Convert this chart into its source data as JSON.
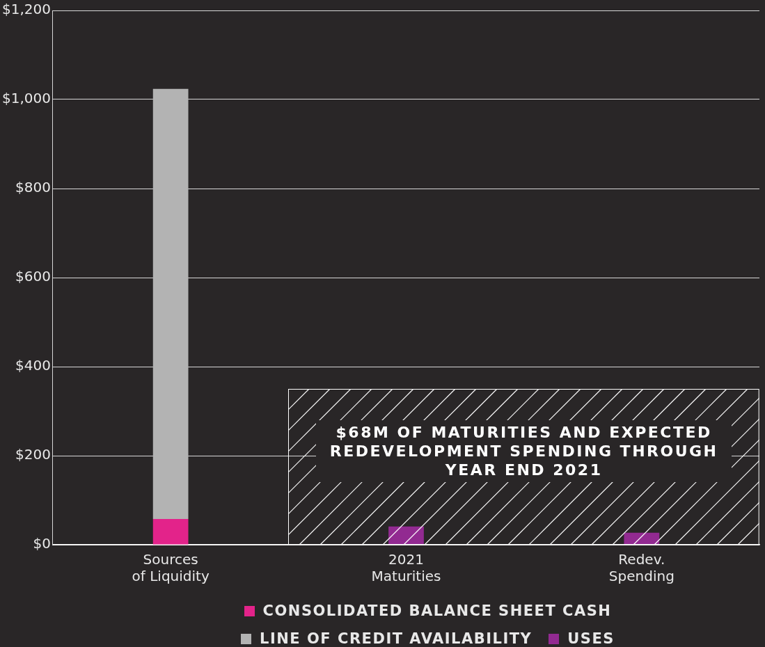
{
  "chart_data": {
    "type": "bar",
    "categories": [
      "Sources\nof Liquidity",
      "2021\nMaturities",
      "Redev.\nSpending"
    ],
    "stacked": true,
    "series": [
      {
        "name": "CONSOLIDATED BALANCE SHEET CASH",
        "color": "#e3238a",
        "values": [
          58,
          null,
          null
        ]
      },
      {
        "name": "LINE OF CREDIT AVAILABILITY",
        "color": "#b3b3b3",
        "values": [
          966,
          null,
          null
        ]
      },
      {
        "name": "USES",
        "color": "#922a91",
        "values": [
          null,
          41,
          27
        ]
      }
    ],
    "ylim": [
      0,
      1200
    ],
    "yticks": [
      {
        "value": 0,
        "label": "$0"
      },
      {
        "value": 200,
        "label": "$200"
      },
      {
        "value": 400,
        "label": "$400"
      },
      {
        "value": 600,
        "label": "$600"
      },
      {
        "value": 800,
        "label": "$800"
      },
      {
        "value": 1000,
        "label": "$1,000"
      },
      {
        "value": 1200,
        "label": "$1,200"
      }
    ],
    "grid": "y",
    "legend": "bottom",
    "annotations": [
      "$68M OF MATURITIES AND EXPECTED REDEVELOPMENT SPENDING THROUGH YEAR END 2021"
    ]
  }
}
